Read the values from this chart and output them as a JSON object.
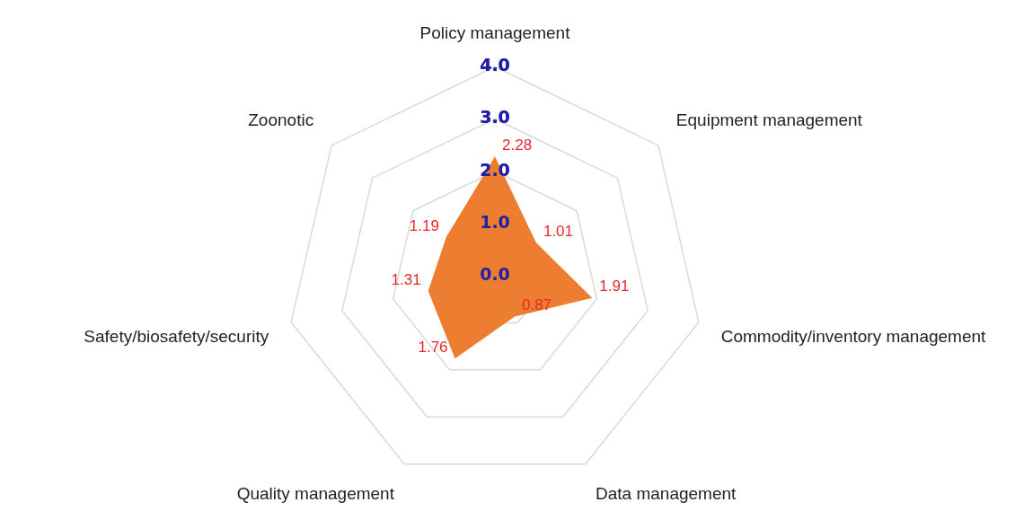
{
  "chart_data": {
    "type": "radar",
    "categories": [
      "Policy management",
      "Equipment management",
      "Commodity/inventory management",
      "Data management",
      "Quality management",
      "Safety/biosafety/security",
      "Zoonotic"
    ],
    "series": [
      {
        "color": "#ed7d31",
        "values": [
          2.28,
          1.01,
          1.91,
          0.87,
          1.76,
          1.31,
          1.19
        ]
      }
    ],
    "ylim": [
      0,
      4
    ],
    "yticks": [
      {
        "value": 0,
        "label": "0.0"
      },
      {
        "value": 1,
        "label": "1.0"
      },
      {
        "value": 2,
        "label": "2.0"
      },
      {
        "value": 3,
        "label": "3.0"
      },
      {
        "value": 4,
        "label": "4.0"
      }
    ],
    "grid": true,
    "data_labels": true,
    "legend": false
  }
}
